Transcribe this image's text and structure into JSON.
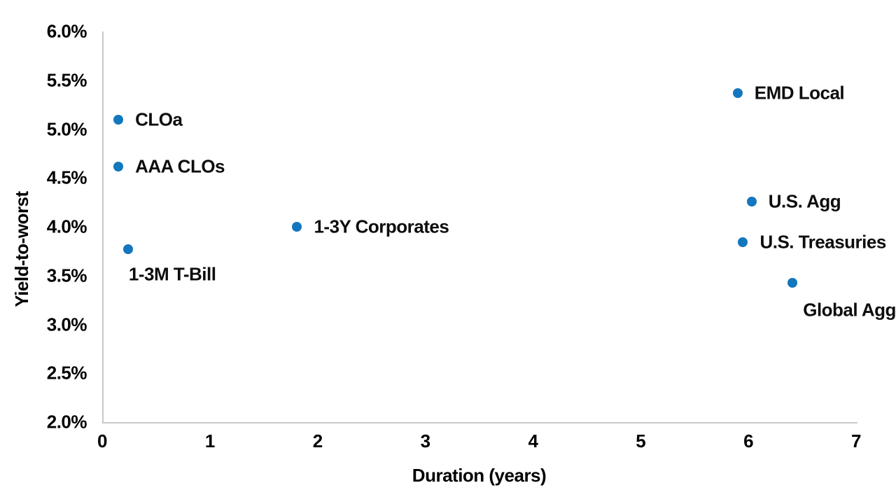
{
  "chart_data": {
    "type": "scatter",
    "title": "",
    "xlabel": "Duration (years)",
    "ylabel": "Yield-to-worst",
    "xlim": [
      0,
      7
    ],
    "ylim": [
      2.0,
      6.0
    ],
    "grid": false,
    "legend": false,
    "marker_color": "#1377bd",
    "axis_line_color": "#c9c9c9",
    "x_ticks": [
      {
        "value": 0,
        "label": "0"
      },
      {
        "value": 1,
        "label": "1"
      },
      {
        "value": 2,
        "label": "2"
      },
      {
        "value": 3,
        "label": "3"
      },
      {
        "value": 4,
        "label": "4"
      },
      {
        "value": 5,
        "label": "5"
      },
      {
        "value": 6,
        "label": "6"
      },
      {
        "value": 7,
        "label": "7"
      }
    ],
    "y_ticks": [
      {
        "value": 2.0,
        "label": "2.0%"
      },
      {
        "value": 2.5,
        "label": "2.5%"
      },
      {
        "value": 3.0,
        "label": "3.0%"
      },
      {
        "value": 3.5,
        "label": "3.5%"
      },
      {
        "value": 4.0,
        "label": "4.0%"
      },
      {
        "value": 4.5,
        "label": "4.5%"
      },
      {
        "value": 5.0,
        "label": "5.0%"
      },
      {
        "value": 5.5,
        "label": "5.5%"
      },
      {
        "value": 6.0,
        "label": "6.0%"
      }
    ],
    "points": [
      {
        "label": "CLOa",
        "x": 0.15,
        "y": 5.1,
        "label_position": "right"
      },
      {
        "label": "AAA CLOs",
        "x": 0.15,
        "y": 4.62,
        "label_position": "right"
      },
      {
        "label": "1-3M T-Bill",
        "x": 0.24,
        "y": 3.77,
        "label_position": "below"
      },
      {
        "label": "1-3Y Corporates",
        "x": 1.81,
        "y": 4.0,
        "label_position": "right"
      },
      {
        "label": "EMD Local",
        "x": 5.9,
        "y": 5.37,
        "label_position": "right"
      },
      {
        "label": "U.S. Agg",
        "x": 6.03,
        "y": 4.26,
        "label_position": "right"
      },
      {
        "label": "U.S. Treasuries",
        "x": 5.95,
        "y": 3.84,
        "label_position": "right"
      },
      {
        "label": "Global Agg",
        "x": 6.41,
        "y": 3.43,
        "label_position": "below-right"
      }
    ]
  }
}
